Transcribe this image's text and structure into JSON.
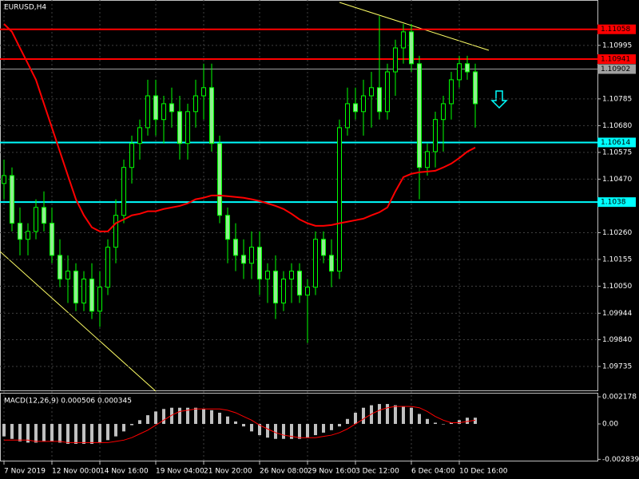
{
  "chart_data": [
    {
      "type": "candlestick",
      "title": "EURUSD,H4",
      "categories": [
        "7 Nov 2019",
        null,
        null,
        null,
        null,
        null,
        "12 Nov 00:00",
        null,
        null,
        null,
        null,
        null,
        "14 Nov 16:00",
        null,
        null,
        null,
        null,
        null,
        null,
        "19 Nov 04:00",
        null,
        null,
        null,
        null,
        null,
        "21 Nov 20:00",
        null,
        null,
        null,
        null,
        null,
        null,
        "26 Nov 08:00",
        null,
        null,
        null,
        null,
        null,
        "29 Nov 16:00",
        null,
        null,
        null,
        null,
        null,
        "3 Dec 12:00",
        null,
        null,
        null,
        null,
        null,
        null,
        "6 Dec 04:00",
        null,
        null,
        null,
        null,
        null,
        "10 Dec 16:00",
        null,
        null
      ],
      "candles": [
        [
          1.10453,
          1.10547,
          1.10391,
          1.10484
        ],
        [
          1.10484,
          1.10516,
          1.10265,
          1.10297
        ],
        [
          1.10297,
          1.10359,
          1.10171,
          1.10234
        ],
        [
          1.10234,
          1.10297,
          1.10171,
          1.10265
        ],
        [
          1.10265,
          1.10391,
          1.10234,
          1.10359
        ],
        [
          1.10359,
          1.10422,
          1.10265,
          1.10297
        ],
        [
          1.10297,
          1.10359,
          1.1014,
          1.10171
        ],
        [
          1.10171,
          1.10234,
          1.10046,
          1.10078
        ],
        [
          1.10078,
          1.10171,
          1.09984,
          1.10109
        ],
        [
          1.10109,
          1.1014,
          1.09952,
          1.09984
        ],
        [
          1.09984,
          1.10109,
          1.09952,
          1.10078
        ],
        [
          1.10078,
          1.1014,
          1.09921,
          1.09952
        ],
        [
          1.09952,
          1.10109,
          1.0989,
          1.10046
        ],
        [
          1.10046,
          1.10234,
          1.10015,
          1.10203
        ],
        [
          1.10203,
          1.10391,
          1.1014,
          1.10328
        ],
        [
          1.10328,
          1.10547,
          1.10297,
          1.10516
        ],
        [
          1.10516,
          1.10641,
          1.10453,
          1.1061
        ],
        [
          1.1061,
          1.10704,
          1.10547,
          1.10672
        ],
        [
          1.10672,
          1.1086,
          1.10641,
          1.10797
        ],
        [
          1.10797,
          1.1086,
          1.10641,
          1.10704
        ],
        [
          1.10704,
          1.10797,
          1.1061,
          1.10766
        ],
        [
          1.10766,
          1.10829,
          1.10672,
          1.10735
        ],
        [
          1.10735,
          1.10797,
          1.10547,
          1.1061
        ],
        [
          1.1061,
          1.10766,
          1.10547,
          1.10735
        ],
        [
          1.10735,
          1.1086,
          1.10672,
          1.10797
        ],
        [
          1.10797,
          1.10923,
          1.10704,
          1.10829
        ],
        [
          1.10829,
          1.10923,
          1.10578,
          1.1061
        ],
        [
          1.1061,
          1.10641,
          1.10297,
          1.10328
        ],
        [
          1.10328,
          1.10359,
          1.1014,
          1.10234
        ],
        [
          1.10234,
          1.10297,
          1.10109,
          1.10171
        ],
        [
          1.10171,
          1.10234,
          1.10078,
          1.1014
        ],
        [
          1.1014,
          1.10265,
          1.10078,
          1.10203
        ],
        [
          1.10203,
          1.10265,
          1.10015,
          1.10078
        ],
        [
          1.10078,
          1.1014,
          1.09984,
          1.10109
        ],
        [
          1.10109,
          1.10171,
          1.09921,
          1.09984
        ],
        [
          1.09984,
          1.10109,
          1.09952,
          1.10078
        ],
        [
          1.10078,
          1.1014,
          1.09984,
          1.10109
        ],
        [
          1.10109,
          1.1014,
          1.09984,
          1.10015
        ],
        [
          1.10015,
          1.10078,
          1.09827,
          1.10046
        ],
        [
          1.10046,
          1.10265,
          1.10015,
          1.10234
        ],
        [
          1.10234,
          1.10265,
          1.1014,
          1.10171
        ],
        [
          1.10171,
          1.10234,
          1.10046,
          1.10109
        ],
        [
          1.10109,
          1.10704,
          1.10078,
          1.10672
        ],
        [
          1.10672,
          1.10829,
          1.10641,
          1.10766
        ],
        [
          1.10766,
          1.10829,
          1.10704,
          1.10735
        ],
        [
          1.10735,
          1.1086,
          1.10641,
          1.10797
        ],
        [
          1.10797,
          1.10891,
          1.10672,
          1.10829
        ],
        [
          1.10829,
          1.1111,
          1.10704,
          1.10735
        ],
        [
          1.10735,
          1.10923,
          1.10704,
          1.10891
        ],
        [
          1.10891,
          1.11017,
          1.10797,
          1.10985
        ],
        [
          1.10985,
          1.11079,
          1.10923,
          1.11048
        ],
        [
          1.11048,
          1.11079,
          1.10891,
          1.10923
        ],
        [
          1.10923,
          1.10954,
          1.10391,
          1.10516
        ],
        [
          1.10516,
          1.1061,
          1.10484,
          1.10578
        ],
        [
          1.10578,
          1.10735,
          1.10516,
          1.10704
        ],
        [
          1.10704,
          1.10797,
          1.10578,
          1.10766
        ],
        [
          1.10766,
          1.10891,
          1.10704,
          1.1086
        ],
        [
          1.1086,
          1.10954,
          1.10829,
          1.10923
        ],
        [
          1.10923,
          1.10954,
          1.1086,
          1.10891
        ],
        [
          1.10891,
          1.10923,
          1.10672,
          1.10766
        ]
      ],
      "candle_color": "#00ff00",
      "body_color": "#90ee90",
      "ma": {
        "color": "#ff0000",
        "values": [
          1.11079,
          1.11048,
          1.10985,
          1.10923,
          1.1086,
          1.10766,
          1.10672,
          1.10578,
          1.10484,
          1.10391,
          1.10328,
          1.10281,
          1.10265,
          1.10265,
          1.10297,
          1.10312,
          1.10328,
          1.10334,
          1.10344,
          1.10344,
          1.10353,
          1.10359,
          1.10365,
          1.10375,
          1.10391,
          1.10397,
          1.10406,
          1.10406,
          1.10403,
          1.104,
          1.10397,
          1.10391,
          1.10384,
          1.10375,
          1.10365,
          1.10353,
          1.10334,
          1.10312,
          1.10297,
          1.10287,
          1.10287,
          1.1029,
          1.10297,
          1.10303,
          1.10309,
          1.10315,
          1.10328,
          1.1034,
          1.10359,
          1.10422,
          1.10478,
          1.10491,
          1.10497,
          1.105,
          1.10503,
          1.10516,
          1.10531,
          1.10553,
          1.10578,
          1.10594
        ]
      },
      "levels": [
        {
          "price": 1.11058,
          "color": "#ff0000"
        },
        {
          "price": 1.10941,
          "color": "#ff0000"
        },
        {
          "price": 1.10902,
          "color": "#a0a0a0"
        },
        {
          "price": 1.10614,
          "color": "#00ffff"
        },
        {
          "price": 1.1038,
          "color": "#00ffff"
        }
      ],
      "ylim": [
        1.09638,
        1.11173
      ],
      "yticks": [
        1.10995,
        1.10785,
        {
          "value": 1.1068,
          "label": "1.10680"
        },
        1.10575,
        {
          "value": 1.1047,
          "label": "1.10470"
        },
        {
          "value": 1.1026,
          "label": "1.10260"
        },
        1.10155,
        {
          "value": 1.1005,
          "label": "1.10050"
        },
        1.09944,
        {
          "value": 1.0984,
          "label": "1.09840"
        },
        1.09735
      ],
      "grid": true
    },
    {
      "type": "macd",
      "title": "MACD(12,26,9) 0.000506 0.000345",
      "histogram": {
        "color": "#c0c0c0",
        "values": [
          -0.001,
          -0.0012,
          -0.0014,
          -0.0015,
          -0.0015,
          -0.0014,
          -0.0014,
          -0.0015,
          -0.0016,
          -0.0016,
          -0.0016,
          -0.0016,
          -0.0015,
          -0.0013,
          -0.001,
          -0.0006,
          -0.0001,
          0.0003,
          0.0007,
          0.001,
          0.0012,
          0.0013,
          0.0013,
          0.0013,
          0.0013,
          0.0012,
          0.0011,
          0.0009,
          0.0006,
          0.0002,
          -0.0002,
          -0.0006,
          -0.0009,
          -0.0011,
          -0.0012,
          -0.0012,
          -0.0012,
          -0.0012,
          -0.0011,
          -0.0009,
          -0.0007,
          -0.0005,
          -0.0002,
          0.0004,
          0.0009,
          0.0013,
          0.0015,
          0.0016,
          0.0016,
          0.0015,
          0.0014,
          0.0013,
          0.0008,
          0.0004,
          0.0001,
          0,
          0.0001,
          0.0003,
          0.0005,
          0.0005
        ]
      },
      "signal": {
        "color": "#ff0000",
        "values": [
          -0.0013,
          -0.0013,
          -0.0013,
          -0.0013,
          -0.0014,
          -0.0014,
          -0.0014,
          -0.0014,
          -0.0015,
          -0.0015,
          -0.0015,
          -0.0015,
          -0.0015,
          -0.0015,
          -0.0014,
          -0.0013,
          -0.0011,
          -0.0008,
          -0.0005,
          -0.0001,
          0.0003,
          0.0007,
          0.001,
          0.0011,
          0.0012,
          0.0012,
          0.0012,
          0.0012,
          0.0011,
          0.0009,
          0.0006,
          0.0003,
          -0.0001,
          -0.0004,
          -0.0007,
          -0.0009,
          -0.001,
          -0.0011,
          -0.0011,
          -0.0011,
          -0.001,
          -0.0009,
          -0.0007,
          -0.0004,
          0,
          0.0004,
          0.0008,
          0.0011,
          0.0013,
          0.0014,
          0.0014,
          0.0014,
          0.0013,
          0.001,
          0.0006,
          0.0003,
          0.0001,
          0.0001,
          0.0002,
          0.0003
        ]
      },
      "ylim": [
        -0.00301,
        0.0025
      ],
      "yticks": [
        0.002178,
        {
          "value": 0,
          "label": "0.00"
        },
        -0.002839
      ]
    }
  ]
}
